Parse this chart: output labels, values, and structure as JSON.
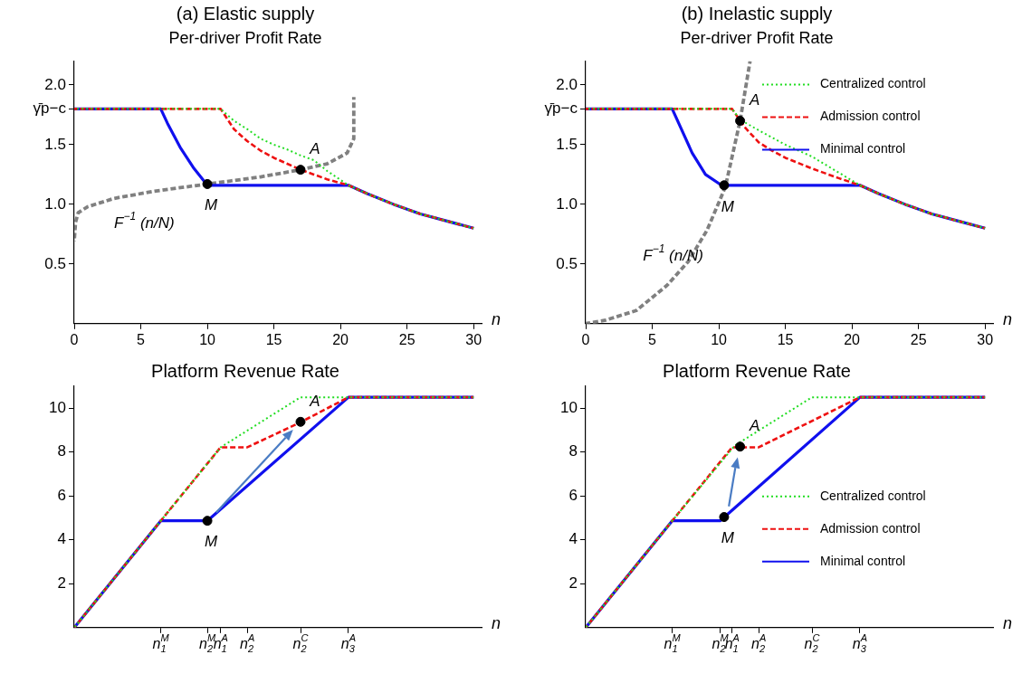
{
  "chart_data": [
    {
      "type": "line",
      "title": "(a) Elastic supply",
      "subtitle": "Per-driver Profit Rate",
      "xlabel": "n",
      "xlim": [
        0,
        30.6
      ],
      "xticks": [
        0,
        5,
        10,
        15,
        20,
        25,
        30
      ],
      "ylim": [
        0,
        2.2
      ],
      "yticks": [
        0.5,
        {
          "value": 1,
          "label": "1.0"
        },
        1.5,
        {
          "value": 1.8,
          "label": "γ̄p−c"
        },
        {
          "value": 2,
          "label": "2.0"
        }
      ],
      "grid": false,
      "legend": false,
      "marker": "none",
      "series": [
        {
          "color": "#22dd22",
          "line_style": "dotted",
          "x": [
            0,
            11,
            12,
            13,
            14,
            15,
            16,
            17,
            18,
            19,
            20.6,
            22,
            24,
            26,
            28,
            30
          ],
          "values": [
            1.8,
            1.8,
            1.7,
            1.63,
            1.55,
            1.5,
            1.46,
            1.41,
            1.37,
            1.28,
            1.16,
            1.09,
            1.0,
            0.92,
            0.86,
            0.8
          ]
        },
        {
          "color": "#ee1111",
          "line_style": "dashed",
          "x": [
            0,
            11,
            12,
            13,
            14,
            15,
            16,
            17,
            18,
            19,
            20.6,
            22,
            24,
            26,
            28,
            30
          ],
          "values": [
            1.8,
            1.8,
            1.63,
            1.53,
            1.45,
            1.39,
            1.34,
            1.29,
            1.25,
            1.21,
            1.16,
            1.09,
            1.0,
            0.92,
            0.86,
            0.8
          ]
        },
        {
          "color": "#1010ee",
          "line_style": "solid",
          "x": [
            0,
            6.5,
            7,
            8,
            9,
            10,
            20.6,
            22,
            24,
            26,
            28,
            30
          ],
          "values": [
            1.8,
            1.8,
            1.68,
            1.47,
            1.3,
            1.16,
            1.16,
            1.09,
            1.0,
            0.92,
            0.86,
            0.8
          ]
        },
        {
          "color": "#808080",
          "line_style": "dashed",
          "x": [
            0,
            0.1,
            0.3,
            1,
            3,
            6,
            10,
            14,
            17,
            19,
            20.5,
            21,
            21
          ],
          "values": [
            0.69,
            0.85,
            0.93,
            0.98,
            1.05,
            1.11,
            1.17,
            1.23,
            1.29,
            1.34,
            1.43,
            1.55,
            1.9
          ]
        },
        {
          "type": "scatter",
          "color": "#000000",
          "marker": "circle",
          "x": [
            10,
            17
          ],
          "values": [
            1.17,
            1.29
          ]
        }
      ],
      "annotations": [
        {
          "text": "A",
          "x": 17,
          "y": 1.29
        },
        {
          "text": "M",
          "x": 10,
          "y": 1.17
        },
        {
          "text": "F$^{−1}$ (n/N)",
          "x": 3,
          "y": 1.05
        }
      ]
    },
    {
      "type": "line",
      "title": "(b) Inelastic supply",
      "subtitle": "Per-driver Profit Rate",
      "xlabel": "n",
      "xlim": [
        0,
        30.6
      ],
      "xticks": [
        0,
        5,
        10,
        15,
        20,
        25,
        30
      ],
      "ylim": [
        0,
        2.2
      ],
      "yticks": [
        0.5,
        {
          "value": 1,
          "label": "1.0"
        },
        1.5,
        {
          "value": 1.8,
          "label": "γ̄p−c"
        },
        {
          "value": 2,
          "label": "2.0"
        }
      ],
      "grid": false,
      "legend": "top right",
      "marker": "none",
      "series": [
        {
          "name": "Centralized control",
          "color": "#22dd22",
          "line_style": "dotted",
          "x": [
            0,
            11,
            11.6,
            13,
            15,
            17,
            20.6,
            22,
            24,
            26,
            28,
            30
          ],
          "values": [
            1.8,
            1.8,
            1.71,
            1.62,
            1.5,
            1.4,
            1.16,
            1.09,
            1.0,
            0.92,
            0.86,
            0.8
          ]
        },
        {
          "name": "Admission control",
          "color": "#ee1111",
          "line_style": "dashed",
          "x": [
            0,
            11,
            11.6,
            12,
            13,
            14,
            15,
            17,
            19,
            20.6,
            22,
            24,
            26,
            28,
            30
          ],
          "values": [
            1.8,
            1.8,
            1.7,
            1.64,
            1.52,
            1.45,
            1.39,
            1.3,
            1.22,
            1.16,
            1.09,
            1.0,
            0.92,
            0.86,
            0.8
          ]
        },
        {
          "name": "Minimal control",
          "color": "#1010ee",
          "line_style": "solid",
          "x": [
            0,
            6.5,
            8,
            9,
            10.2,
            20.6,
            22,
            24,
            26,
            28,
            30
          ],
          "values": [
            1.8,
            1.8,
            1.43,
            1.25,
            1.16,
            1.16,
            1.09,
            1.0,
            0.92,
            0.86,
            0.8
          ]
        },
        {
          "color": "#808080",
          "line_style": "dashed",
          "x": [
            0,
            1.5,
            3.8,
            6.1,
            7.7,
            9.1,
            10.1,
            10.5,
            11.6,
            12.35
          ],
          "values": [
            0,
            0.03,
            0.11,
            0.32,
            0.52,
            0.78,
            1.04,
            1.15,
            1.7,
            2.2
          ]
        },
        {
          "type": "scatter",
          "color": "#000000",
          "marker": "circle",
          "x": [
            10.4,
            11.6
          ],
          "values": [
            1.16,
            1.7
          ]
        }
      ],
      "annotations": [
        {
          "text": "A",
          "x": 11.6,
          "y": 1.7
        },
        {
          "text": "M",
          "x": 10.4,
          "y": 1.16
        },
        {
          "text": "F$^{−1}$ (n/N)",
          "x": 9.1,
          "y": 0.78
        }
      ]
    },
    {
      "type": "line",
      "title": "Platform Revenue Rate",
      "xlabel": "n",
      "xlim": [
        0,
        30.6
      ],
      "xticks": [
        {
          "value": 6.5,
          "label": null
        },
        {
          "value": 10,
          "label": null
        },
        {
          "value": 11,
          "label": null
        },
        {
          "value": 13,
          "label": null
        },
        {
          "value": 17,
          "label": null
        },
        {
          "value": 20.6,
          "label": null
        }
      ],
      "tick_labels": "y",
      "ylim": [
        0,
        11
      ],
      "yticks": [
        2,
        4,
        6,
        8,
        10
      ],
      "grid": false,
      "legend": false,
      "marker": "none",
      "series": [
        {
          "color": "#22dd22",
          "line_style": "dotted",
          "x": [
            0,
            6.5,
            11,
            17,
            30
          ],
          "values": [
            0,
            4.87,
            8.22,
            10.5,
            10.5
          ]
        },
        {
          "color": "#ee1111",
          "line_style": "dashed",
          "x": [
            0,
            6.5,
            11,
            13,
            17,
            20.6,
            30
          ],
          "values": [
            0,
            4.87,
            8.22,
            8.22,
            9.36,
            10.5,
            10.5
          ]
        },
        {
          "color": "#1010ee",
          "line_style": "solid",
          "x": [
            0,
            6.5,
            10,
            20.6,
            30
          ],
          "values": [
            0,
            4.87,
            4.87,
            10.5,
            10.5
          ]
        },
        {
          "type": "scatter",
          "color": "#000000",
          "marker": "circle",
          "x": [
            10,
            17
          ],
          "values": [
            4.87,
            9.38
          ]
        }
      ],
      "annotations": [
        {
          "text": "A",
          "x": 17,
          "y": 9.38
        },
        {
          "text": "M",
          "x": 10,
          "y": 4.87
        },
        "n$_{1}$$^{M}$",
        "n$_{2}$$^{M}$",
        "n$_{1}$$^{A}$",
        "n$_{2}$$^{A}$",
        "n$_{2}$$^{C}$",
        "n$_{3}$$^{A}$"
      ]
    },
    {
      "type": "line",
      "title": "Platform Revenue Rate",
      "xlabel": "n",
      "xlim": [
        0,
        30.6
      ],
      "xticks": [
        {
          "value": 6.5,
          "label": null
        },
        {
          "value": 10.1,
          "label": null
        },
        {
          "value": 11,
          "label": null
        },
        {
          "value": 13,
          "label": null
        },
        {
          "value": 17,
          "label": null
        },
        {
          "value": 20.6,
          "label": null
        }
      ],
      "tick_labels": "y",
      "ylim": [
        0,
        11
      ],
      "yticks": [
        2,
        4,
        6,
        8,
        10
      ],
      "grid": false,
      "legend": "bottom right",
      "marker": "none",
      "series": [
        {
          "name": "Centralized control",
          "color": "#22dd22",
          "line_style": "dotted",
          "x": [
            0,
            6.5,
            11.2,
            17,
            30
          ],
          "values": [
            0,
            4.87,
            8.3,
            10.5,
            10.5
          ]
        },
        {
          "name": "Admission control",
          "color": "#ee1111",
          "line_style": "dashed",
          "x": [
            0,
            6.5,
            11,
            13,
            20.6,
            30
          ],
          "values": [
            0,
            4.87,
            8.22,
            8.22,
            10.5,
            10.5
          ]
        },
        {
          "name": "Minimal control",
          "color": "#1010ee",
          "line_style": "solid",
          "x": [
            0,
            6.5,
            10.1,
            20.6,
            30
          ],
          "values": [
            0,
            4.87,
            4.87,
            10.5,
            10.5
          ]
        },
        {
          "type": "scatter",
          "color": "#000000",
          "marker": "circle",
          "x": [
            10.4,
            11.6
          ],
          "values": [
            5.04,
            8.25
          ]
        }
      ],
      "annotations": [
        {
          "text": "A",
          "x": 11.6,
          "y": 8.25
        },
        {
          "text": "M",
          "x": 10.4,
          "y": 5.04
        },
        "n$_{1}$$^{M}$",
        "n$_{2}$$^{M}$",
        "n$_{1}$$^{A}$",
        "n$_{2}$$^{A}$",
        "n$_{2}$$^{C}$",
        "n$_{3}$$^{A}$"
      ]
    }
  ]
}
